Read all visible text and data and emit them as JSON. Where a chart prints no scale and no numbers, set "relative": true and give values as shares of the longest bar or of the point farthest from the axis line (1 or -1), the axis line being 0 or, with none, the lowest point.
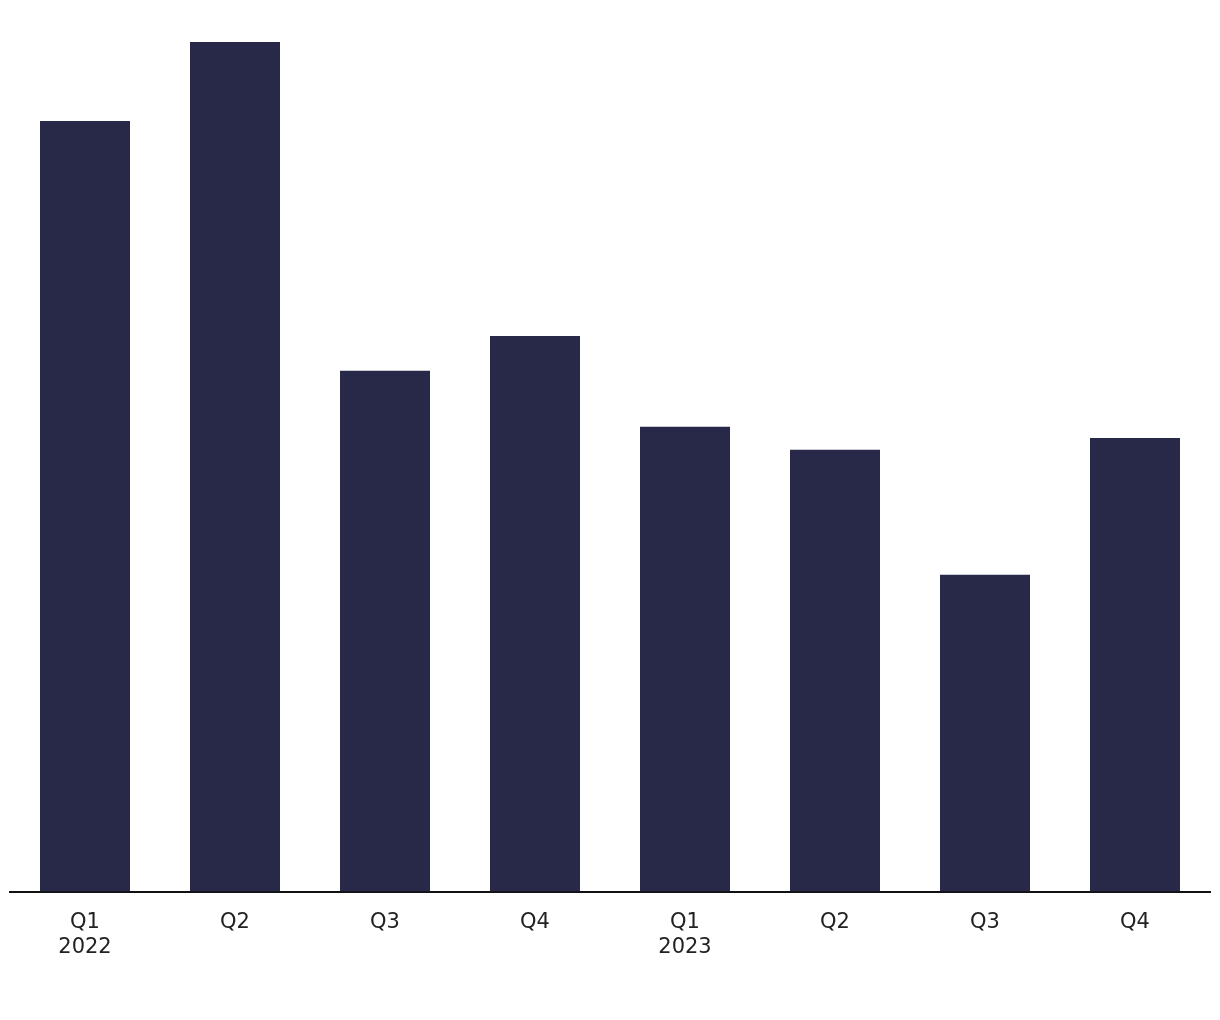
{
  "chart_data": {
    "type": "bar",
    "relative": true,
    "color": "#282849",
    "categories": [
      "Q1\n2022",
      "Q2",
      "Q3",
      "Q4",
      "Q1\n2023",
      "Q2",
      "Q3",
      "Q4"
    ],
    "values": [
      0.907,
      1,
      0.613,
      0.654,
      0.547,
      0.52,
      0.373,
      0.534
    ],
    "grid": false,
    "legend": false
  }
}
